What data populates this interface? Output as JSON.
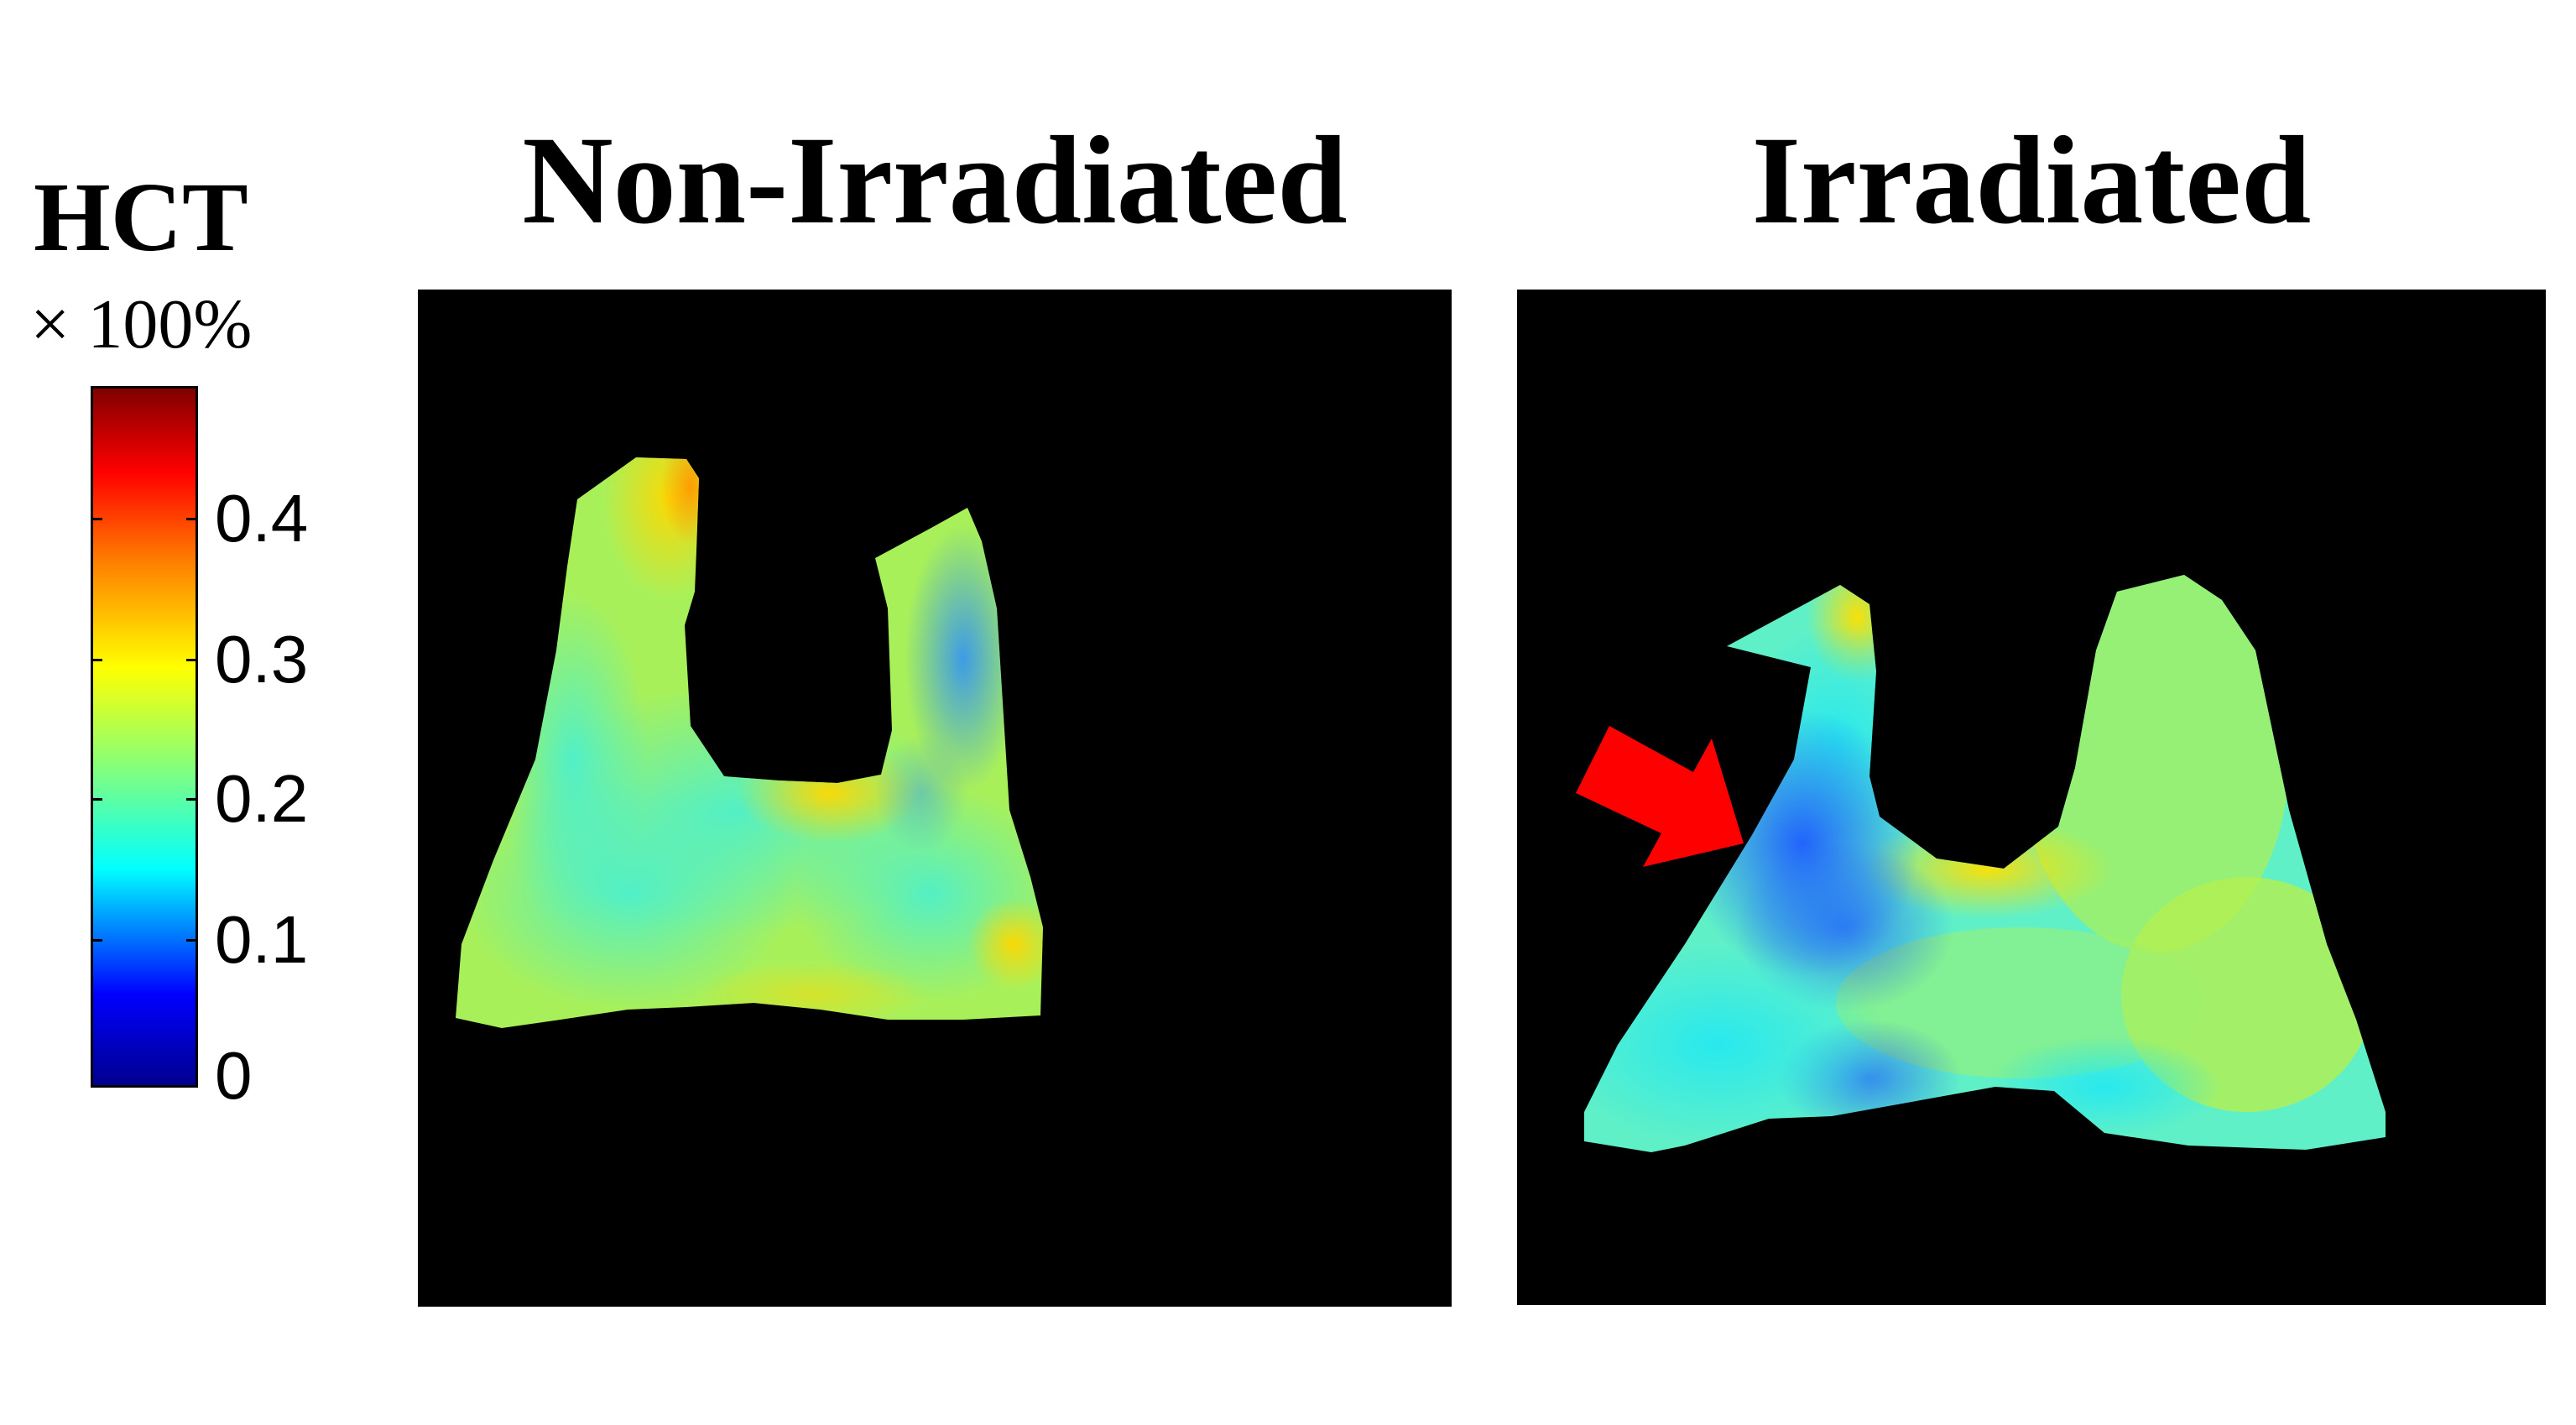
{
  "colorbar": {
    "title": "HCT",
    "unit": "× 100%",
    "ticks": [
      "0.4",
      "0.3",
      "0.2",
      "0.1",
      "0"
    ],
    "colormap": [
      "#00008f",
      "#0000ff",
      "#00ffff",
      "#ffff00",
      "#ff0000",
      "#800000"
    ]
  },
  "panels": [
    {
      "title": "Non-Irradiated"
    },
    {
      "title": "Irradiated"
    }
  ],
  "annotation": {
    "arrow_color": "#ff0000",
    "description": ""
  }
}
